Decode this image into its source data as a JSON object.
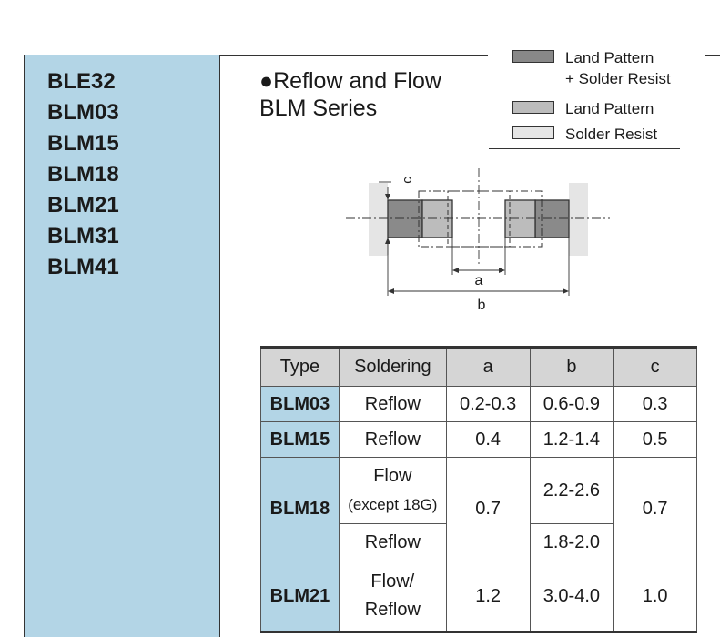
{
  "sidebar": {
    "items": [
      "BLE32",
      "BLM03",
      "BLM15",
      "BLM18",
      "BLM21",
      "BLM31",
      "BLM41"
    ]
  },
  "section": {
    "title_line1": "●Reflow and Flow",
    "title_line2": "BLM Series"
  },
  "legend": {
    "items": [
      {
        "label_line1": "Land Pattern",
        "label_line2": "+ Solder Resist",
        "color": "#888888"
      },
      {
        "label_line1": "Land Pattern",
        "label_line2": "",
        "color": "#bcbcbc"
      },
      {
        "label_line1": "Solder Resist",
        "label_line2": "",
        "color": "#e5e5e5"
      }
    ]
  },
  "diagram": {
    "label_a": "a",
    "label_b": "b",
    "label_c": "c"
  },
  "table": {
    "headers": [
      "Type",
      "Soldering",
      "a",
      "b",
      "c"
    ],
    "rows": [
      {
        "type": "BLM03",
        "soldering": "Reflow",
        "a": "0.2-0.3",
        "b": "0.6-0.9",
        "c": "0.3"
      },
      {
        "type": "BLM15",
        "soldering": "Reflow",
        "a": "0.4",
        "b": "1.2-1.4",
        "c": "0.5"
      },
      {
        "type": "BLM18",
        "soldering_1_line1": "Flow",
        "soldering_1_line2": "(except 18G)",
        "soldering_2": "Reflow",
        "a": "0.7",
        "b_1": "2.2-2.6",
        "b_2": "1.8-2.0",
        "c": "0.7"
      },
      {
        "type": "BLM21",
        "soldering_line1": "Flow/",
        "soldering_line2": "Reflow",
        "a": "1.2",
        "b": "3.0-4.0",
        "c": "1.0"
      }
    ]
  }
}
